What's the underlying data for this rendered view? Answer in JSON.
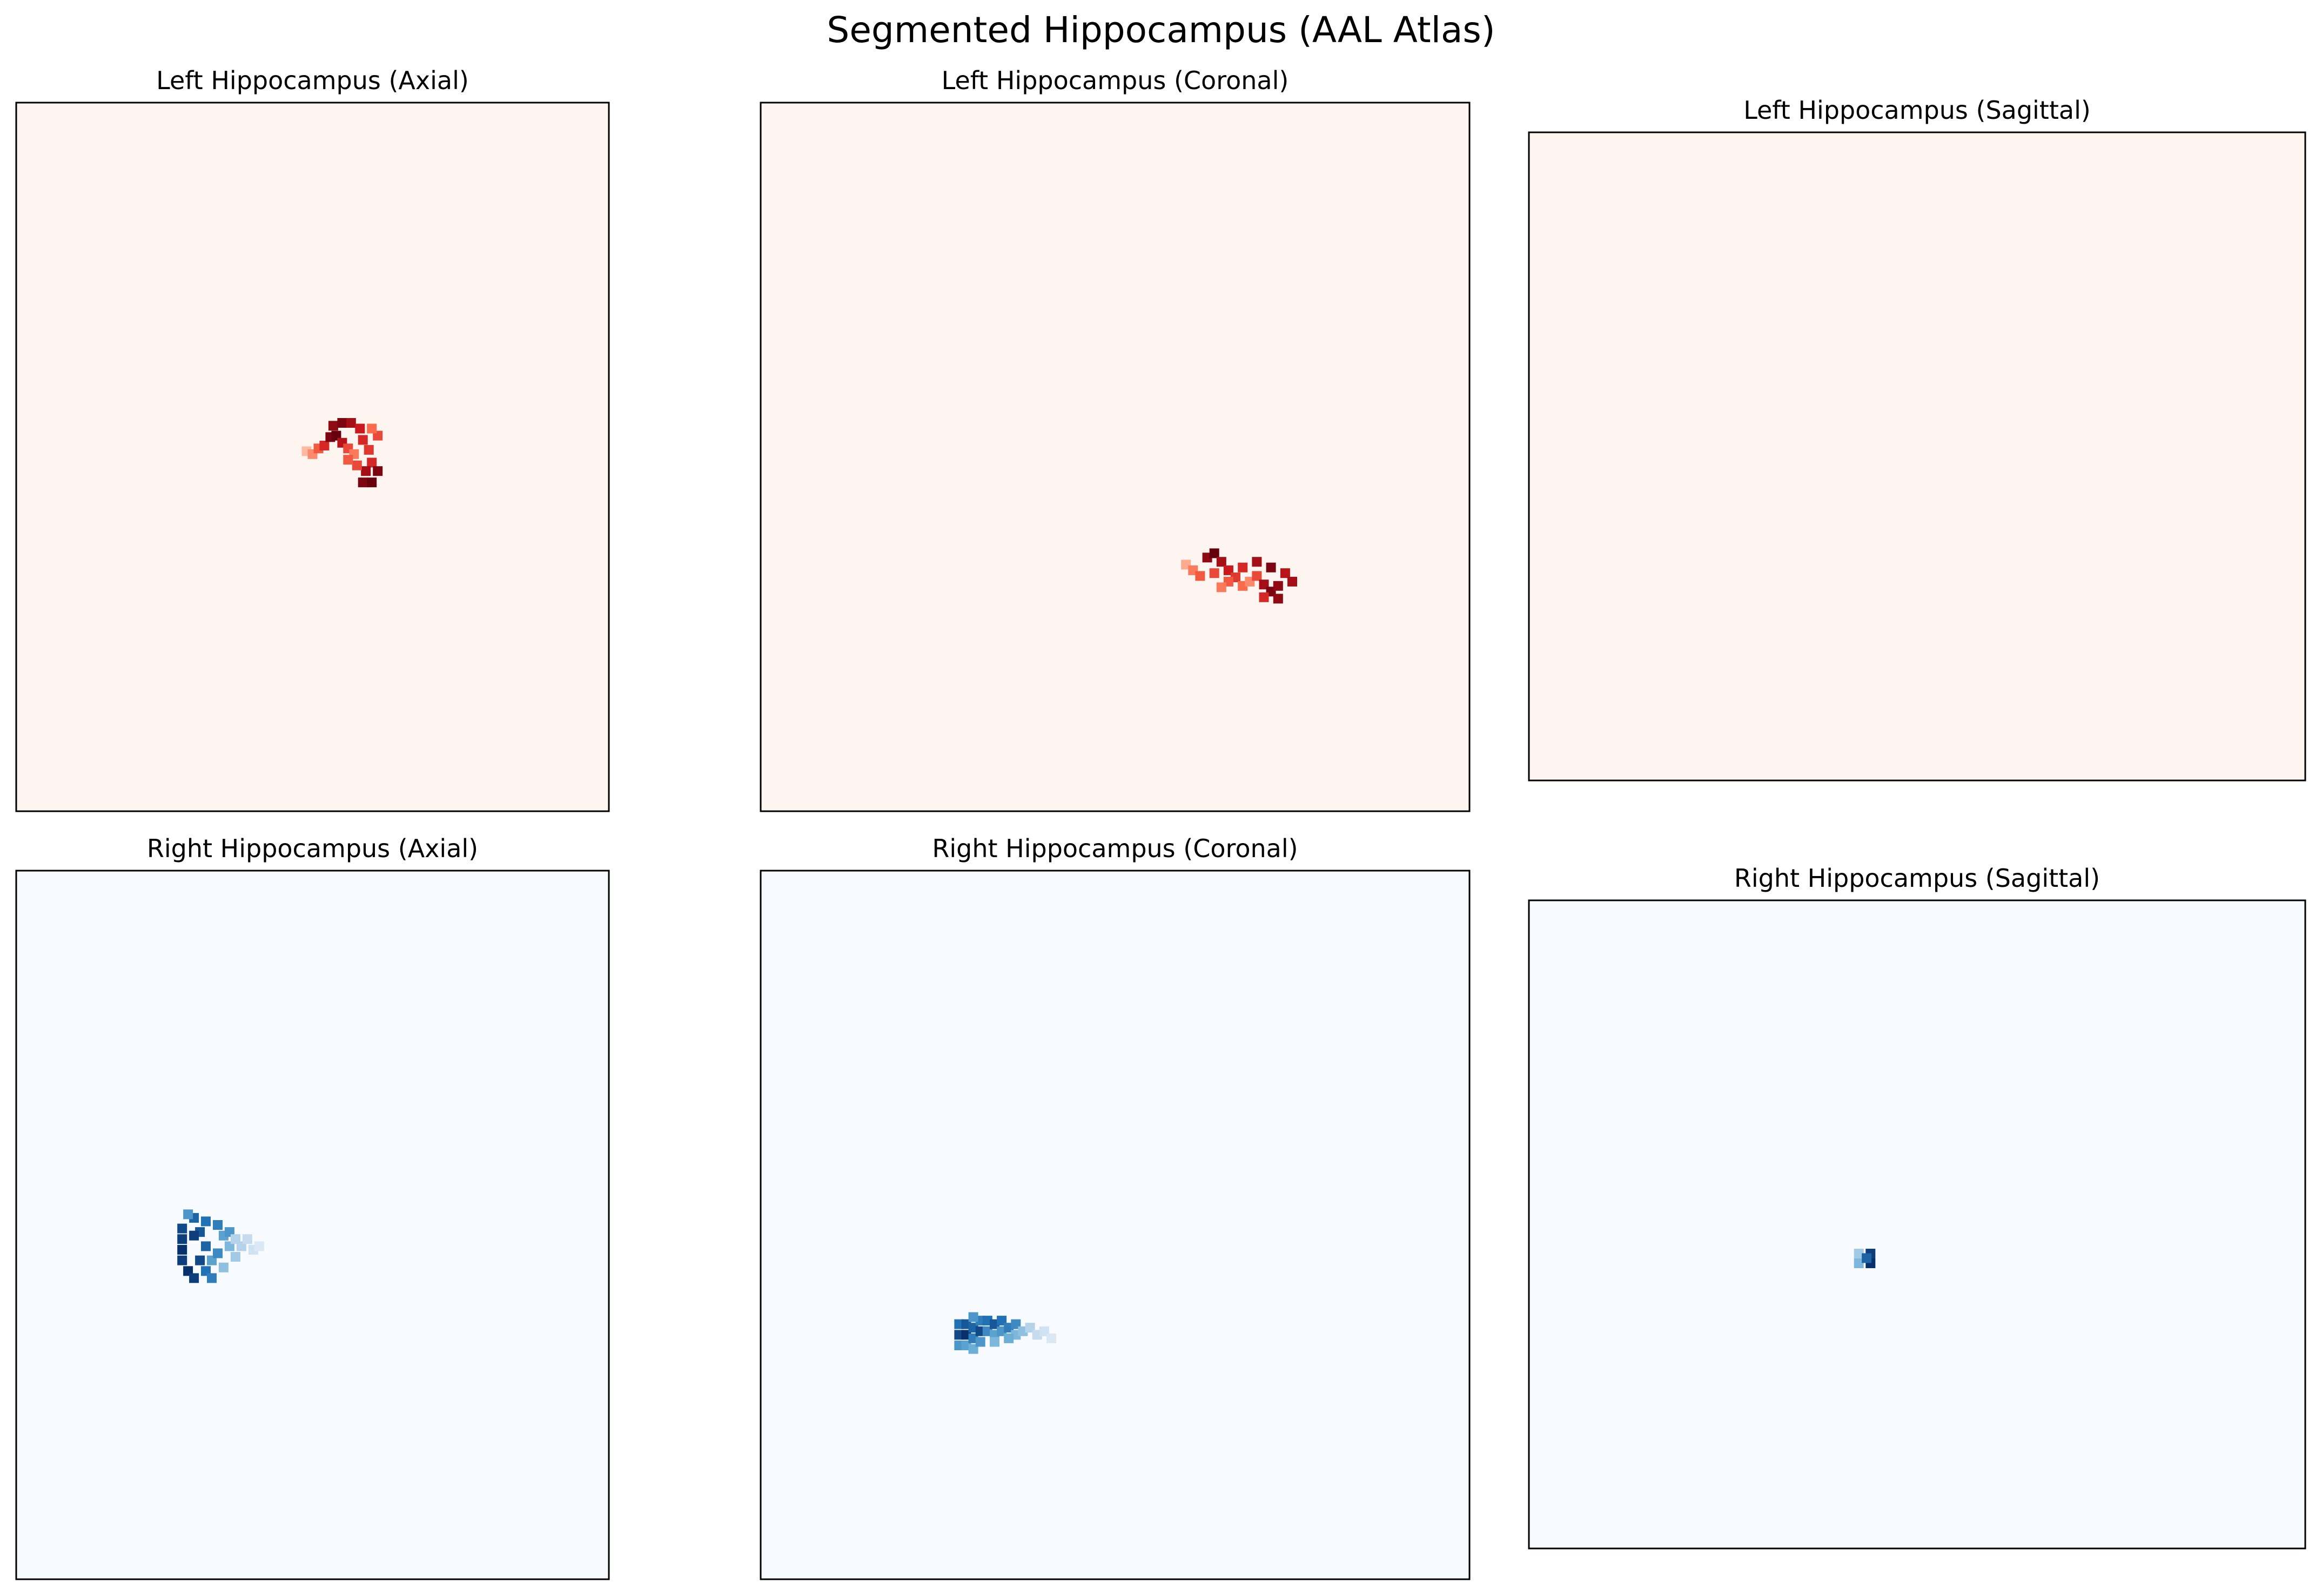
{
  "figure": {
    "title": "Segmented Hippocampus (AAL Atlas)"
  },
  "chart_data": [
    {
      "type": "heatmap",
      "title": "Left Hippocampus (Axial)",
      "colormap": "Reds",
      "grid": false,
      "axes_visible": false,
      "background_color": "#fff5f0",
      "cells": [
        [
          0.49,
          0.492,
          0.25
        ],
        [
          0.5,
          0.496,
          0.4
        ],
        [
          0.51,
          0.488,
          0.55
        ],
        [
          0.52,
          0.484,
          0.7
        ],
        [
          0.53,
          0.472,
          0.95
        ],
        [
          0.54,
          0.47,
          1.0
        ],
        [
          0.55,
          0.48,
          0.8
        ],
        [
          0.56,
          0.488,
          0.6
        ],
        [
          0.57,
          0.496,
          0.45
        ],
        [
          0.535,
          0.456,
          0.9
        ],
        [
          0.55,
          0.452,
          0.95
        ],
        [
          0.565,
          0.452,
          0.85
        ],
        [
          0.58,
          0.46,
          0.75
        ],
        [
          0.585,
          0.476,
          0.7
        ],
        [
          0.595,
          0.49,
          0.65
        ],
        [
          0.6,
          0.508,
          0.7
        ],
        [
          0.59,
          0.52,
          0.85
        ],
        [
          0.575,
          0.512,
          0.6
        ],
        [
          0.56,
          0.504,
          0.55
        ],
        [
          0.585,
          0.536,
          0.95
        ],
        [
          0.6,
          0.536,
          1.0
        ],
        [
          0.61,
          0.52,
          0.95
        ],
        [
          0.61,
          0.47,
          0.6
        ],
        [
          0.6,
          0.46,
          0.5
        ]
      ]
    },
    {
      "type": "heatmap",
      "title": "Left Hippocampus (Coronal)",
      "colormap": "Reds",
      "grid": false,
      "axes_visible": false,
      "background_color": "#fff5f0",
      "cells": [
        [
          0.6,
          0.652,
          0.3
        ],
        [
          0.61,
          0.66,
          0.45
        ],
        [
          0.62,
          0.668,
          0.55
        ],
        [
          0.63,
          0.642,
          0.9
        ],
        [
          0.64,
          0.636,
          1.0
        ],
        [
          0.65,
          0.648,
          0.85
        ],
        [
          0.66,
          0.66,
          0.75
        ],
        [
          0.67,
          0.67,
          0.65
        ],
        [
          0.68,
          0.682,
          0.5
        ],
        [
          0.69,
          0.676,
          0.4
        ],
        [
          0.7,
          0.668,
          0.6
        ],
        [
          0.71,
          0.68,
          0.85
        ],
        [
          0.72,
          0.69,
          0.95
        ],
        [
          0.73,
          0.682,
          0.9
        ],
        [
          0.74,
          0.664,
          0.8
        ],
        [
          0.7,
          0.648,
          0.85
        ],
        [
          0.72,
          0.656,
          0.95
        ],
        [
          0.68,
          0.656,
          0.7
        ],
        [
          0.66,
          0.676,
          0.55
        ],
        [
          0.64,
          0.664,
          0.6
        ],
        [
          0.65,
          0.684,
          0.45
        ],
        [
          0.73,
          0.7,
          0.9
        ],
        [
          0.71,
          0.698,
          0.7
        ],
        [
          0.75,
          0.676,
          0.85
        ]
      ]
    },
    {
      "type": "heatmap",
      "title": "Left Hippocampus (Sagittal)",
      "colormap": "Reds",
      "grid": false,
      "axes_visible": false,
      "background_color": "#fff5f0",
      "cells": []
    },
    {
      "type": "heatmap",
      "title": "Right Hippocampus (Axial)",
      "colormap": "Blues",
      "grid": false,
      "axes_visible": false,
      "background_color": "#f7fbff",
      "cells": [
        [
          0.28,
          0.505,
          0.9
        ],
        [
          0.28,
          0.52,
          0.95
        ],
        [
          0.28,
          0.535,
          1.0
        ],
        [
          0.28,
          0.55,
          0.95
        ],
        [
          0.29,
          0.565,
          1.0
        ],
        [
          0.3,
          0.575,
          0.95
        ],
        [
          0.3,
          0.49,
          0.8
        ],
        [
          0.31,
          0.51,
          0.85
        ],
        [
          0.32,
          0.53,
          0.8
        ],
        [
          0.31,
          0.55,
          0.9
        ],
        [
          0.32,
          0.565,
          0.75
        ],
        [
          0.33,
          0.55,
          0.55
        ],
        [
          0.34,
          0.5,
          0.7
        ],
        [
          0.35,
          0.515,
          0.55
        ],
        [
          0.36,
          0.53,
          0.45
        ],
        [
          0.37,
          0.545,
          0.35
        ],
        [
          0.38,
          0.53,
          0.3
        ],
        [
          0.39,
          0.52,
          0.25
        ],
        [
          0.4,
          0.535,
          0.2
        ],
        [
          0.41,
          0.53,
          0.15
        ],
        [
          0.36,
          0.51,
          0.6
        ],
        [
          0.34,
          0.54,
          0.65
        ],
        [
          0.33,
          0.575,
          0.7
        ],
        [
          0.29,
          0.485,
          0.6
        ],
        [
          0.3,
          0.515,
          0.95
        ],
        [
          0.35,
          0.56,
          0.4
        ],
        [
          0.37,
          0.52,
          0.3
        ],
        [
          0.32,
          0.495,
          0.75
        ]
      ]
    },
    {
      "type": "heatmap",
      "title": "Right Hippocampus (Coronal)",
      "colormap": "Blues",
      "grid": false,
      "axes_visible": false,
      "background_color": "#f7fbff",
      "cells": [
        [
          0.28,
          0.64,
          0.75
        ],
        [
          0.28,
          0.655,
          0.9
        ],
        [
          0.28,
          0.67,
          0.6
        ],
        [
          0.29,
          0.64,
          0.85
        ],
        [
          0.29,
          0.655,
          1.0
        ],
        [
          0.29,
          0.67,
          0.55
        ],
        [
          0.3,
          0.645,
          0.8
        ],
        [
          0.3,
          0.66,
          0.7
        ],
        [
          0.3,
          0.675,
          0.5
        ],
        [
          0.31,
          0.635,
          0.7
        ],
        [
          0.31,
          0.65,
          0.9
        ],
        [
          0.31,
          0.665,
          0.6
        ],
        [
          0.32,
          0.635,
          0.75
        ],
        [
          0.32,
          0.65,
          0.65
        ],
        [
          0.33,
          0.64,
          0.85
        ],
        [
          0.33,
          0.655,
          0.55
        ],
        [
          0.34,
          0.635,
          0.75
        ],
        [
          0.34,
          0.65,
          0.6
        ],
        [
          0.35,
          0.645,
          0.7
        ],
        [
          0.36,
          0.64,
          0.65
        ],
        [
          0.36,
          0.655,
          0.45
        ],
        [
          0.37,
          0.65,
          0.4
        ],
        [
          0.38,
          0.645,
          0.3
        ],
        [
          0.39,
          0.655,
          0.25
        ],
        [
          0.4,
          0.65,
          0.2
        ],
        [
          0.41,
          0.66,
          0.15
        ],
        [
          0.35,
          0.66,
          0.5
        ],
        [
          0.33,
          0.665,
          0.45
        ],
        [
          0.3,
          0.63,
          0.6
        ]
      ]
    },
    {
      "type": "heatmap",
      "title": "Right Hippocampus (Sagittal)",
      "colormap": "Blues",
      "grid": false,
      "axes_visible": false,
      "background_color": "#f7fbff",
      "cells": [
        [
          0.425,
          0.545,
          0.35
        ],
        [
          0.425,
          0.56,
          0.45
        ],
        [
          0.44,
          0.545,
          0.95
        ],
        [
          0.44,
          0.56,
          1.0
        ],
        [
          0.435,
          0.552,
          0.8
        ]
      ]
    }
  ]
}
